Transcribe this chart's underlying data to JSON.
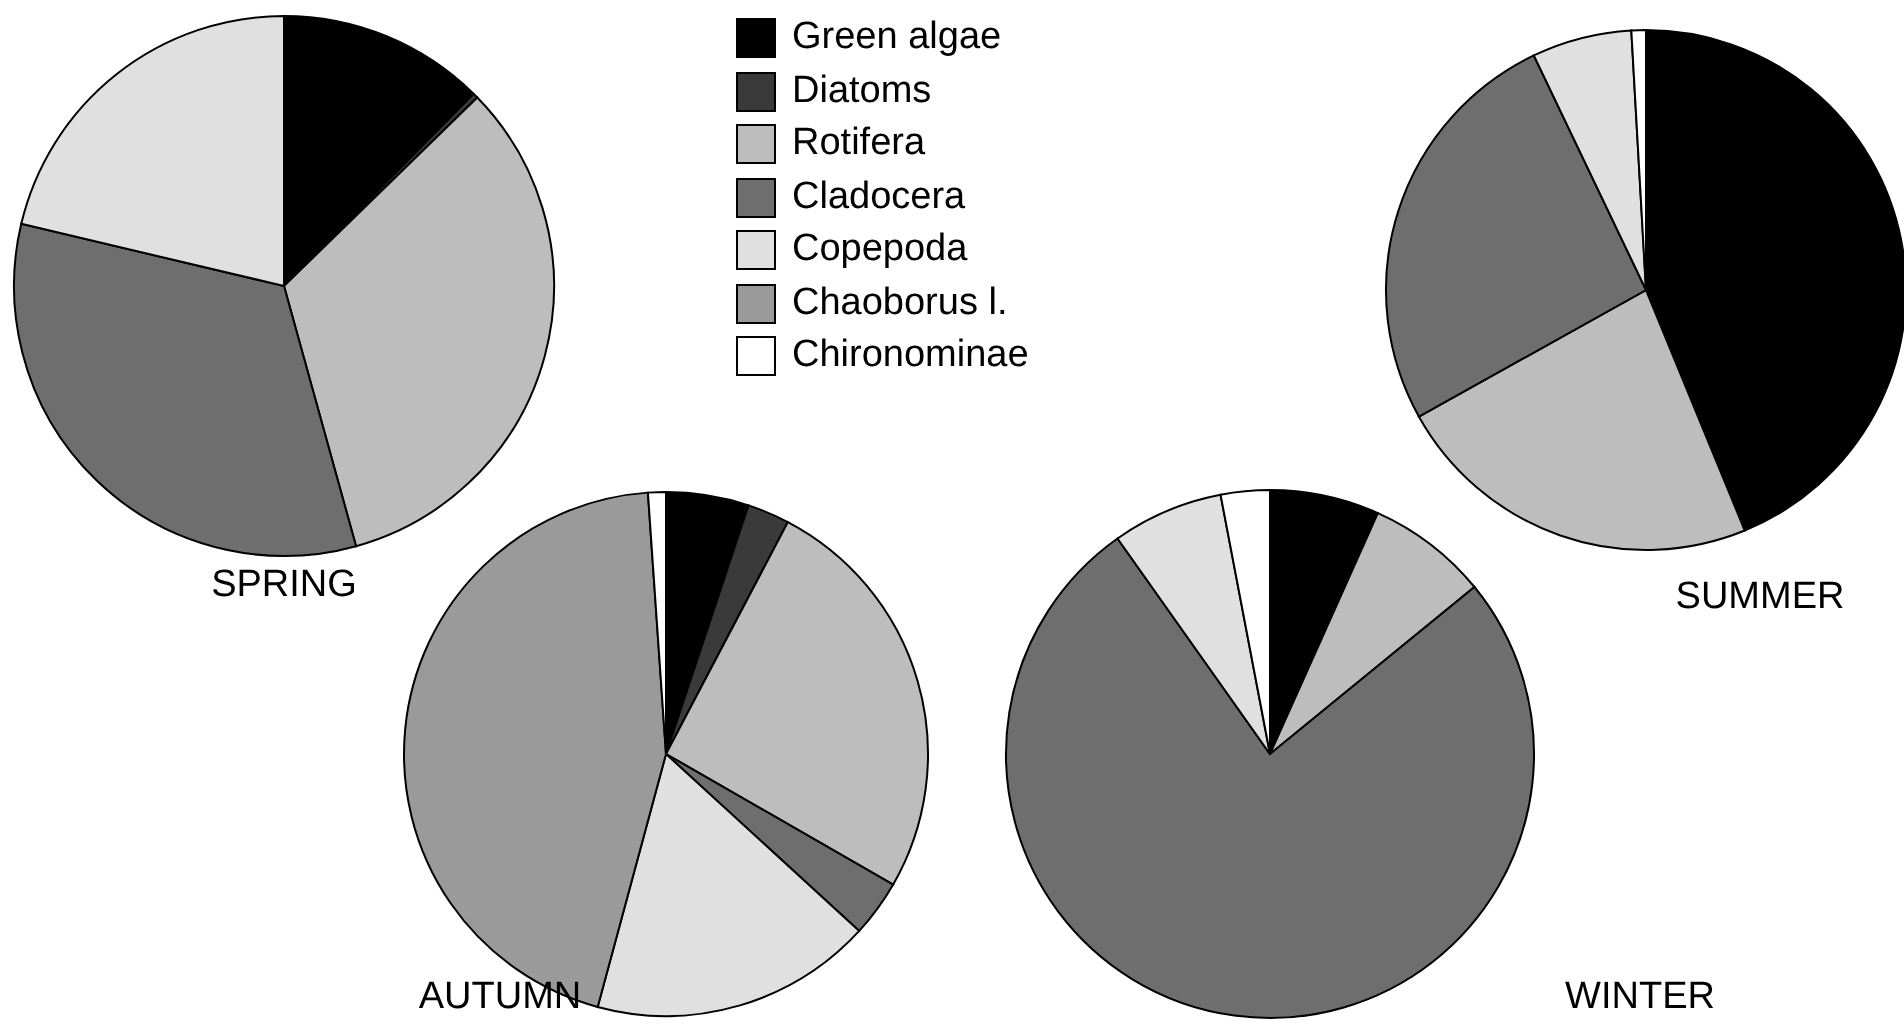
{
  "chart_data": {
    "type": "pie",
    "legend": "top",
    "categories": [
      "Green algae",
      "Diatoms",
      "Rotifera",
      "Cladocera",
      "Copepoda",
      "Chaoborus l.",
      "Chironominae"
    ],
    "colors": [
      "#000000",
      "#3a3a3a",
      "#bdbdbd",
      "#6e6e6e",
      "#e0e0e0",
      "#9a9a9a",
      "#ffffff"
    ],
    "series": [
      {
        "name": "SPRING",
        "values": [
          12.4,
          0.3,
          33,
          33,
          21.3,
          0,
          0
        ]
      },
      {
        "name": "SUMMER",
        "values": [
          43.8,
          0,
          23.1,
          26,
          6.2,
          0,
          0.9
        ]
      },
      {
        "name": "AUTUMN",
        "values": [
          5.1,
          2.6,
          25.6,
          3.5,
          17.4,
          44.7,
          1.1
        ]
      },
      {
        "name": "WINTER",
        "values": [
          6.7,
          0,
          7.4,
          76.1,
          6.8,
          0,
          3
        ]
      }
    ]
  }
}
